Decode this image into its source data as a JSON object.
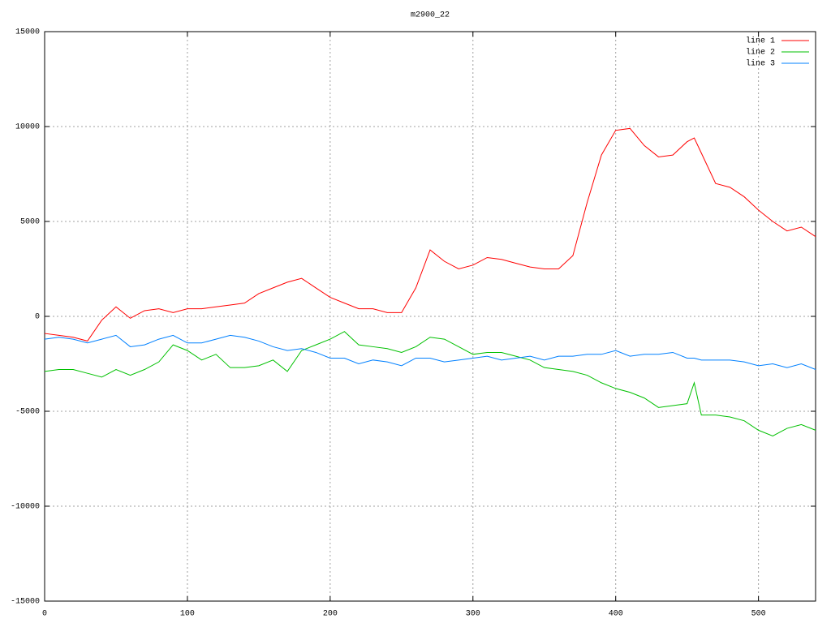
{
  "chart_data": {
    "type": "line",
    "title": "m2900_22",
    "x": [
      0,
      10,
      20,
      30,
      40,
      50,
      60,
      70,
      80,
      90,
      100,
      110,
      120,
      130,
      140,
      150,
      160,
      170,
      180,
      190,
      200,
      210,
      220,
      230,
      240,
      250,
      260,
      270,
      280,
      290,
      300,
      310,
      320,
      330,
      340,
      350,
      360,
      370,
      380,
      390,
      400,
      410,
      420,
      430,
      440,
      450,
      455,
      460,
      470,
      480,
      490,
      500,
      510,
      520,
      530,
      540
    ],
    "series": [
      {
        "name": "line 1",
        "color": "#ff0000",
        "values": [
          -900,
          -1000,
          -1100,
          -1300,
          -200,
          500,
          -100,
          300,
          400,
          200,
          400,
          400,
          500,
          600,
          700,
          1200,
          1500,
          1800,
          2000,
          1500,
          1000,
          700,
          400,
          400,
          200,
          200,
          1500,
          3500,
          2900,
          2500,
          2700,
          3100,
          3000,
          2800,
          2600,
          2500,
          2500,
          3200,
          6000,
          8500,
          9800,
          9900,
          9000,
          8400,
          8500,
          9200,
          9400,
          8600,
          7000,
          6800,
          6300,
          5600,
          5000,
          4500,
          4700,
          4200
        ]
      },
      {
        "name": "line 2",
        "color": "#00c000",
        "values": [
          -2900,
          -2800,
          -2800,
          -3000,
          -3200,
          -2800,
          -3100,
          -2800,
          -2400,
          -1500,
          -1800,
          -2300,
          -2000,
          -2700,
          -2700,
          -2600,
          -2300,
          -2900,
          -1800,
          -1500,
          -1200,
          -800,
          -1500,
          -1600,
          -1700,
          -1900,
          -1600,
          -1100,
          -1200,
          -1600,
          -2000,
          -1900,
          -1900,
          -2100,
          -2300,
          -2700,
          -2800,
          -2900,
          -3100,
          -3500,
          -3800,
          -4000,
          -4300,
          -4800,
          -4700,
          -4600,
          -3500,
          -5200,
          -5200,
          -5300,
          -5500,
          -6000,
          -6300,
          -5900,
          -5700,
          -6000
        ]
      },
      {
        "name": "line 3",
        "color": "#0080ff",
        "values": [
          -1200,
          -1100,
          -1200,
          -1400,
          -1200,
          -1000,
          -1600,
          -1500,
          -1200,
          -1000,
          -1400,
          -1400,
          -1200,
          -1000,
          -1100,
          -1300,
          -1600,
          -1800,
          -1700,
          -1900,
          -2200,
          -2200,
          -2500,
          -2300,
          -2400,
          -2600,
          -2200,
          -2200,
          -2400,
          -2300,
          -2200,
          -2100,
          -2300,
          -2200,
          -2100,
          -2300,
          -2100,
          -2100,
          -2000,
          -2000,
          -1800,
          -2100,
          -2000,
          -2000,
          -1900,
          -2200,
          -2200,
          -2300,
          -2300,
          -2300,
          -2400,
          -2600,
          -2500,
          -2700,
          -2500,
          -2800
        ]
      }
    ],
    "xlim": [
      0,
      540
    ],
    "xticks": [
      0,
      100,
      200,
      300,
      400,
      500
    ],
    "ylim": [
      -15000,
      15000
    ],
    "yticks": [
      -15000,
      -10000,
      -5000,
      0,
      5000,
      10000,
      15000
    ],
    "grid": true,
    "legend": "top-right"
  }
}
